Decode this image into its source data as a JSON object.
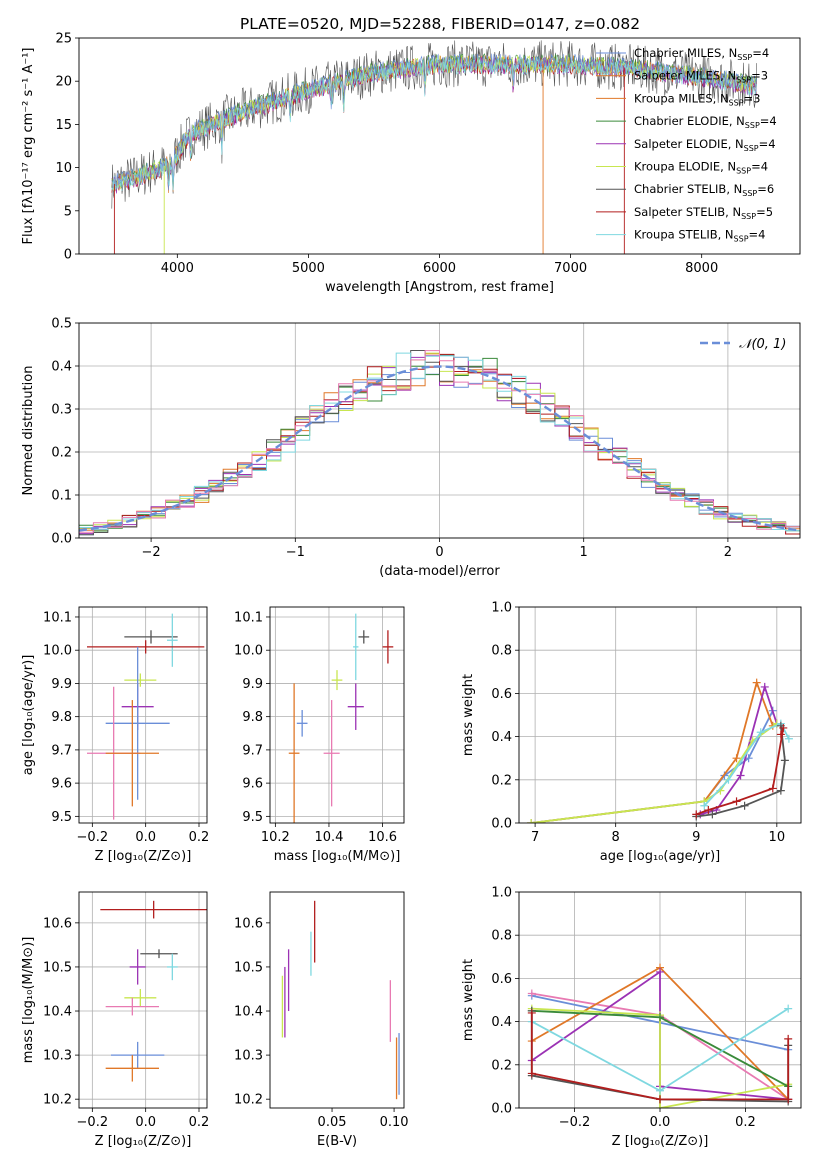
{
  "figure_title": "PLATE=0520, MJD=52288, FIBERID=0147, z=0.082",
  "colors": {
    "chabrier_miles": "#6a8ed8",
    "salpeter_miles": "#e07828",
    "kroupa_miles": "#e07828",
    "chabrier_elodie": "#3a8a3a",
    "salpeter_elodie": "#9b32b4",
    "kroupa_elodie": "#c8e650",
    "chabrier_stelib": "#555555",
    "salpeter_stelib": "#b21e1e",
    "kroupa_stelib": "#7fd8e0",
    "pink": "#e87ab2",
    "normal_curve": "#6a8ed8",
    "grid": "#b0b0b0"
  },
  "chart_data": [
    {
      "id": "spectrum",
      "type": "line",
      "xlabel": "wavelength [Angstrom, rest frame]",
      "ylabel": "Flux [fλ10⁻¹⁷ erg cm⁻² s⁻¹ A⁻¹]",
      "xlim": [
        3250,
        8750
      ],
      "ylim": [
        0,
        25
      ],
      "xticks": [
        "4000",
        "5000",
        "6000",
        "7000",
        "8000"
      ],
      "yticks": [
        "0",
        "5",
        "10",
        "15",
        "20",
        "25"
      ],
      "grid": false,
      "legend_position": "right",
      "legend": [
        {
          "label": "Chabrier MILES, N",
          "sub": "SSP",
          "suffix": "=4",
          "color_key": "chabrier_miles"
        },
        {
          "label": "Salpeter MILES, N",
          "sub": "SSP",
          "suffix": "=3",
          "color_key": "salpeter_miles"
        },
        {
          "label": "Kroupa MILES, N",
          "sub": "SSP",
          "suffix": "=3",
          "color_key": "kroupa_miles"
        },
        {
          "label": "Chabrier ELODIE, N",
          "sub": "SSP",
          "suffix": "=4",
          "color_key": "chabrier_elodie"
        },
        {
          "label": "Salpeter ELODIE, N",
          "sub": "SSP",
          "suffix": "=4",
          "color_key": "salpeter_elodie"
        },
        {
          "label": "Kroupa ELODIE, N",
          "sub": "SSP",
          "suffix": "=4",
          "color_key": "kroupa_elodie"
        },
        {
          "label": "Chabrier STELIB, N",
          "sub": "SSP",
          "suffix": "=6",
          "color_key": "chabrier_stelib"
        },
        {
          "label": "Salpeter STELIB, N",
          "sub": "SSP",
          "suffix": "=5",
          "color_key": "salpeter_stelib"
        },
        {
          "label": "Kroupa STELIB, N",
          "sub": "SSP",
          "suffix": "=4",
          "color_key": "kroupa_stelib"
        }
      ],
      "continuum": [
        [
          3500,
          8.0
        ],
        [
          3700,
          9.0
        ],
        [
          3950,
          10.5
        ],
        [
          4100,
          14.0
        ],
        [
          4500,
          16.5
        ],
        [
          5000,
          19.0
        ],
        [
          5500,
          21.0
        ],
        [
          6000,
          22.0
        ],
        [
          6500,
          22.0
        ],
        [
          7000,
          22.0
        ],
        [
          7500,
          21.5
        ],
        [
          8000,
          20.5
        ],
        [
          8400,
          19.5
        ]
      ]
    },
    {
      "id": "residuals",
      "type": "line",
      "xlabel": "(data-model)/error",
      "ylabel": "Normed distribution",
      "xlim": [
        -2.5,
        2.5
      ],
      "ylim": [
        0,
        0.5
      ],
      "xticks": [
        "−2",
        "−1",
        "0",
        "1",
        "2"
      ],
      "yticks": [
        "0.0",
        "0.1",
        "0.2",
        "0.3",
        "0.4",
        "0.5"
      ],
      "grid": true,
      "legend_position": "top-right",
      "legend": [
        {
          "label": "𝒩(0, 1)",
          "color_key": "normal_curve"
        }
      ],
      "bins": [
        -2.5,
        -2.4,
        -2.3,
        -2.2,
        -2.1,
        -2.0,
        -1.9,
        -1.8,
        -1.7,
        -1.6,
        -1.5,
        -1.4,
        -1.3,
        -1.2,
        -1.1,
        -1.0,
        -0.9,
        -0.8,
        -0.7,
        -0.6,
        -0.5,
        -0.4,
        -0.3,
        -0.2,
        -0.1,
        0.0,
        0.1,
        0.2,
        0.3,
        0.4,
        0.5,
        0.6,
        0.7,
        0.8,
        0.9,
        1.0,
        1.1,
        1.2,
        1.3,
        1.4,
        1.5,
        1.6,
        1.7,
        1.8,
        1.9,
        2.0,
        2.1,
        2.2,
        2.3,
        2.4,
        2.5
      ]
    },
    {
      "id": "age_vs_Z",
      "type": "scatter",
      "xlabel": "Z [log₁₀(Z/Z⊙)]",
      "ylabel": "age  [log₁₀(age/yr)]",
      "xlim": [
        -0.25,
        0.23
      ],
      "ylim": [
        9.48,
        10.13
      ],
      "xticks": [
        "−0.2",
        "0.0",
        "0.2"
      ],
      "yticks": [
        "9.5",
        "9.6",
        "9.7",
        "9.8",
        "9.9",
        "10.0",
        "10.1"
      ],
      "grid": true,
      "points": [
        {
          "x": 0.02,
          "y": 10.04,
          "xerr": 0.1,
          "yerr": 0.02,
          "color_key": "chabrier_stelib"
        },
        {
          "x": 0.1,
          "y": 10.03,
          "xerr": 0.02,
          "yerr": 0.08,
          "color_key": "kroupa_stelib"
        },
        {
          "x": 0.0,
          "y": 10.01,
          "xerr": 0.22,
          "yerr": 0.02,
          "color_key": "salpeter_stelib"
        },
        {
          "x": -0.02,
          "y": 9.91,
          "xerr": 0.06,
          "yerr": 0.02,
          "color_key": "kroupa_elodie"
        },
        {
          "x": -0.03,
          "y": 9.83,
          "xerr": 0.06,
          "yerr": 0.07,
          "color_key": "salpeter_elodie"
        },
        {
          "x": -0.03,
          "y": 9.78,
          "xerr": 0.12,
          "yerr": 0.23,
          "color_key": "chabrier_miles"
        },
        {
          "x": -0.12,
          "y": 9.69,
          "xerr": 0.1,
          "yerr": 0.2,
          "color_key": "pink"
        },
        {
          "x": -0.05,
          "y": 9.69,
          "xerr": 0.1,
          "yerr": 0.16,
          "color_key": "kroupa_miles"
        }
      ]
    },
    {
      "id": "age_vs_mass",
      "type": "scatter",
      "xlabel": "mass [log₁₀(M/M⊙)]",
      "ylabel": "",
      "xlim": [
        10.18,
        10.68
      ],
      "ylim": [
        9.48,
        10.13
      ],
      "xticks": [
        "10.2",
        "10.4",
        "10.6"
      ],
      "yticks": [
        "9.5",
        "9.6",
        "9.7",
        "9.8",
        "9.9",
        "10.0",
        "10.1"
      ],
      "grid": true,
      "points": [
        {
          "x": 10.53,
          "y": 10.04,
          "xerr": 0.02,
          "yerr": 0.02,
          "color_key": "chabrier_stelib"
        },
        {
          "x": 10.5,
          "y": 10.01,
          "xerr": 0.01,
          "yerr": 0.1,
          "color_key": "kroupa_stelib"
        },
        {
          "x": 10.62,
          "y": 10.01,
          "xerr": 0.02,
          "yerr": 0.05,
          "color_key": "salpeter_stelib"
        },
        {
          "x": 10.43,
          "y": 9.91,
          "xerr": 0.02,
          "yerr": 0.03,
          "color_key": "kroupa_elodie"
        },
        {
          "x": 10.5,
          "y": 9.83,
          "xerr": 0.03,
          "yerr": 0.07,
          "color_key": "salpeter_elodie"
        },
        {
          "x": 10.3,
          "y": 9.78,
          "xerr": 0.02,
          "yerr": 0.04,
          "color_key": "chabrier_miles"
        },
        {
          "x": 10.41,
          "y": 9.69,
          "xerr": 0.03,
          "yerr": 0.16,
          "color_key": "pink"
        },
        {
          "x": 10.27,
          "y": 9.69,
          "xerr": 0.02,
          "yerr": 0.21,
          "color_key": "kroupa_miles"
        }
      ]
    },
    {
      "id": "mass_weight_vs_age",
      "type": "line",
      "xlabel": "age  [log₁₀(age/yr)]",
      "ylabel": "mass weight",
      "xlim": [
        6.8,
        10.3
      ],
      "ylim": [
        0,
        1.0
      ],
      "xticks": [
        "7",
        "8",
        "9",
        "10"
      ],
      "yticks": [
        "0.0",
        "0.2",
        "0.4",
        "0.6",
        "0.8",
        "1.0"
      ],
      "grid": true,
      "series": [
        {
          "color_key": "chabrier_miles",
          "x": [
            6.95,
            9.1,
            9.35,
            9.65,
            9.95
          ],
          "y": [
            0.0,
            0.1,
            0.22,
            0.3,
            0.52
          ]
        },
        {
          "color_key": "kroupa_miles",
          "x": [
            6.95,
            9.1,
            9.5,
            9.75,
            9.95
          ],
          "y": [
            0.0,
            0.1,
            0.3,
            0.65,
            0.45
          ]
        },
        {
          "color_key": "salpeter_elodie",
          "x": [
            9.05,
            9.25,
            9.55,
            9.85,
            10.0
          ],
          "y": [
            0.04,
            0.06,
            0.22,
            0.63,
            0.46
          ]
        },
        {
          "color_key": "kroupa_elodie",
          "x": [
            6.95,
            9.1,
            9.3,
            9.7,
            10.0
          ],
          "y": [
            0.0,
            0.1,
            0.15,
            0.38,
            0.46
          ]
        },
        {
          "color_key": "kroupa_stelib",
          "x": [
            9.1,
            9.4,
            9.8,
            10.05,
            10.15
          ],
          "y": [
            0.08,
            0.2,
            0.42,
            0.46,
            0.39
          ]
        },
        {
          "color_key": "chabrier_stelib",
          "x": [
            9.0,
            9.2,
            9.6,
            10.05,
            10.1,
            10.05
          ],
          "y": [
            0.03,
            0.04,
            0.08,
            0.15,
            0.29,
            0.45
          ]
        },
        {
          "color_key": "salpeter_stelib",
          "x": [
            9.0,
            9.15,
            9.5,
            9.95,
            10.08,
            10.05
          ],
          "y": [
            0.04,
            0.06,
            0.1,
            0.16,
            0.44,
            0.41
          ]
        }
      ]
    },
    {
      "id": "mass_vs_Z",
      "type": "scatter",
      "xlabel": "Z [log₁₀(Z/Z⊙)]",
      "ylabel": "mass [log₁₀(M/M⊙)]",
      "xlim": [
        -0.25,
        0.23
      ],
      "ylim": [
        10.18,
        10.67
      ],
      "xticks": [
        "−0.2",
        "0.0",
        "0.2"
      ],
      "yticks": [
        "10.2",
        "10.3",
        "10.4",
        "10.5",
        "10.6"
      ],
      "grid": true,
      "points": [
        {
          "x": 0.03,
          "y": 10.63,
          "xerr": 0.2,
          "yerr": 0.02,
          "color_key": "salpeter_stelib"
        },
        {
          "x": 0.05,
          "y": 10.53,
          "xerr": 0.07,
          "yerr": 0.01,
          "color_key": "chabrier_stelib"
        },
        {
          "x": -0.03,
          "y": 10.5,
          "xerr": 0.03,
          "yerr": 0.04,
          "color_key": "salpeter_elodie"
        },
        {
          "x": 0.1,
          "y": 10.5,
          "xerr": 0.02,
          "yerr": 0.03,
          "color_key": "kroupa_stelib"
        },
        {
          "x": -0.02,
          "y": 10.43,
          "xerr": 0.06,
          "yerr": 0.02,
          "color_key": "kroupa_elodie"
        },
        {
          "x": -0.05,
          "y": 10.41,
          "xerr": 0.1,
          "yerr": 0.02,
          "color_key": "pink"
        },
        {
          "x": -0.03,
          "y": 10.3,
          "xerr": 0.1,
          "yerr": 0.03,
          "color_key": "chabrier_miles"
        },
        {
          "x": -0.05,
          "y": 10.27,
          "xerr": 0.1,
          "yerr": 0.03,
          "color_key": "kroupa_miles"
        }
      ]
    },
    {
      "id": "mass_vs_ebv",
      "type": "scatter",
      "xlabel": "E(B-V)",
      "ylabel": "",
      "xlim": [
        0.0,
        0.108
      ],
      "ylim": [
        10.18,
        10.67
      ],
      "xticks": [
        "0.05",
        "0.10"
      ],
      "yticks": [
        "10.2",
        "10.3",
        "10.4",
        "10.5",
        "10.6"
      ],
      "grid": false,
      "points": [
        {
          "x": 0.01,
          "y": 10.41,
          "yerr": 0.07,
          "color_key": "kroupa_elodie"
        },
        {
          "x": 0.012,
          "y": 10.42,
          "yerr": 0.08,
          "color_key": "salpeter_elodie"
        },
        {
          "x": 0.015,
          "y": 10.47,
          "yerr": 0.07,
          "color_key": "salpeter_elodie"
        },
        {
          "x": 0.033,
          "y": 10.53,
          "yerr": 0.05,
          "color_key": "kroupa_stelib"
        },
        {
          "x": 0.036,
          "y": 10.58,
          "yerr": 0.07,
          "color_key": "salpeter_stelib"
        },
        {
          "x": 0.097,
          "y": 10.4,
          "yerr": 0.07,
          "color_key": "pink"
        },
        {
          "x": 0.102,
          "y": 10.27,
          "yerr": 0.07,
          "color_key": "kroupa_miles"
        },
        {
          "x": 0.104,
          "y": 10.28,
          "yerr": 0.07,
          "color_key": "chabrier_miles"
        }
      ]
    },
    {
      "id": "mass_weight_vs_Z",
      "type": "line",
      "xlabel": "Z [log₁₀(Z/Z⊙)]",
      "ylabel": "mass weight",
      "xlim": [
        -0.33,
        0.33
      ],
      "ylim": [
        0,
        1.0
      ],
      "xticks": [
        "−0.2",
        "0.0",
        "0.2"
      ],
      "yticks": [
        "0.0",
        "0.2",
        "0.4",
        "0.6",
        "0.8",
        "1.0"
      ],
      "grid": true,
      "series": [
        {
          "color_key": "chabrier_miles",
          "x": [
            -0.3,
            0.3
          ],
          "y": [
            0.52,
            0.27
          ]
        },
        {
          "color_key": "pink",
          "x": [
            -0.3,
            0.0,
            0.3
          ],
          "y": [
            0.53,
            0.43,
            0.04
          ]
        },
        {
          "color_key": "kroupa_miles",
          "x": [
            -0.3,
            0.0,
            0.3
          ],
          "y": [
            0.31,
            0.65,
            0.04
          ]
        },
        {
          "color_key": "salpeter_elodie",
          "x": [
            -0.3,
            0.0,
            0.0,
            0.3
          ],
          "y": [
            0.22,
            0.63,
            0.1,
            0.04
          ]
        },
        {
          "color_key": "kroupa_elodie",
          "x": [
            -0.3,
            0.0,
            0.0,
            0.3
          ],
          "y": [
            0.46,
            0.43,
            0.0,
            0.11
          ]
        },
        {
          "color_key": "chabrier_elodie",
          "x": [
            -0.3,
            0.0,
            0.3
          ],
          "y": [
            0.45,
            0.42,
            0.1
          ]
        },
        {
          "color_key": "kroupa_stelib",
          "x": [
            -0.3,
            0.0,
            0.3
          ],
          "y": [
            0.4,
            0.08,
            0.46
          ]
        },
        {
          "color_key": "chabrier_stelib",
          "x": [
            -0.3,
            -0.3,
            0.0,
            0.3,
            0.3
          ],
          "y": [
            0.45,
            0.15,
            0.04,
            0.03,
            0.29
          ]
        },
        {
          "color_key": "salpeter_stelib",
          "x": [
            -0.3,
            -0.3,
            0.0,
            0.3,
            0.3
          ],
          "y": [
            0.44,
            0.16,
            0.04,
            0.04,
            0.32
          ]
        }
      ]
    }
  ]
}
